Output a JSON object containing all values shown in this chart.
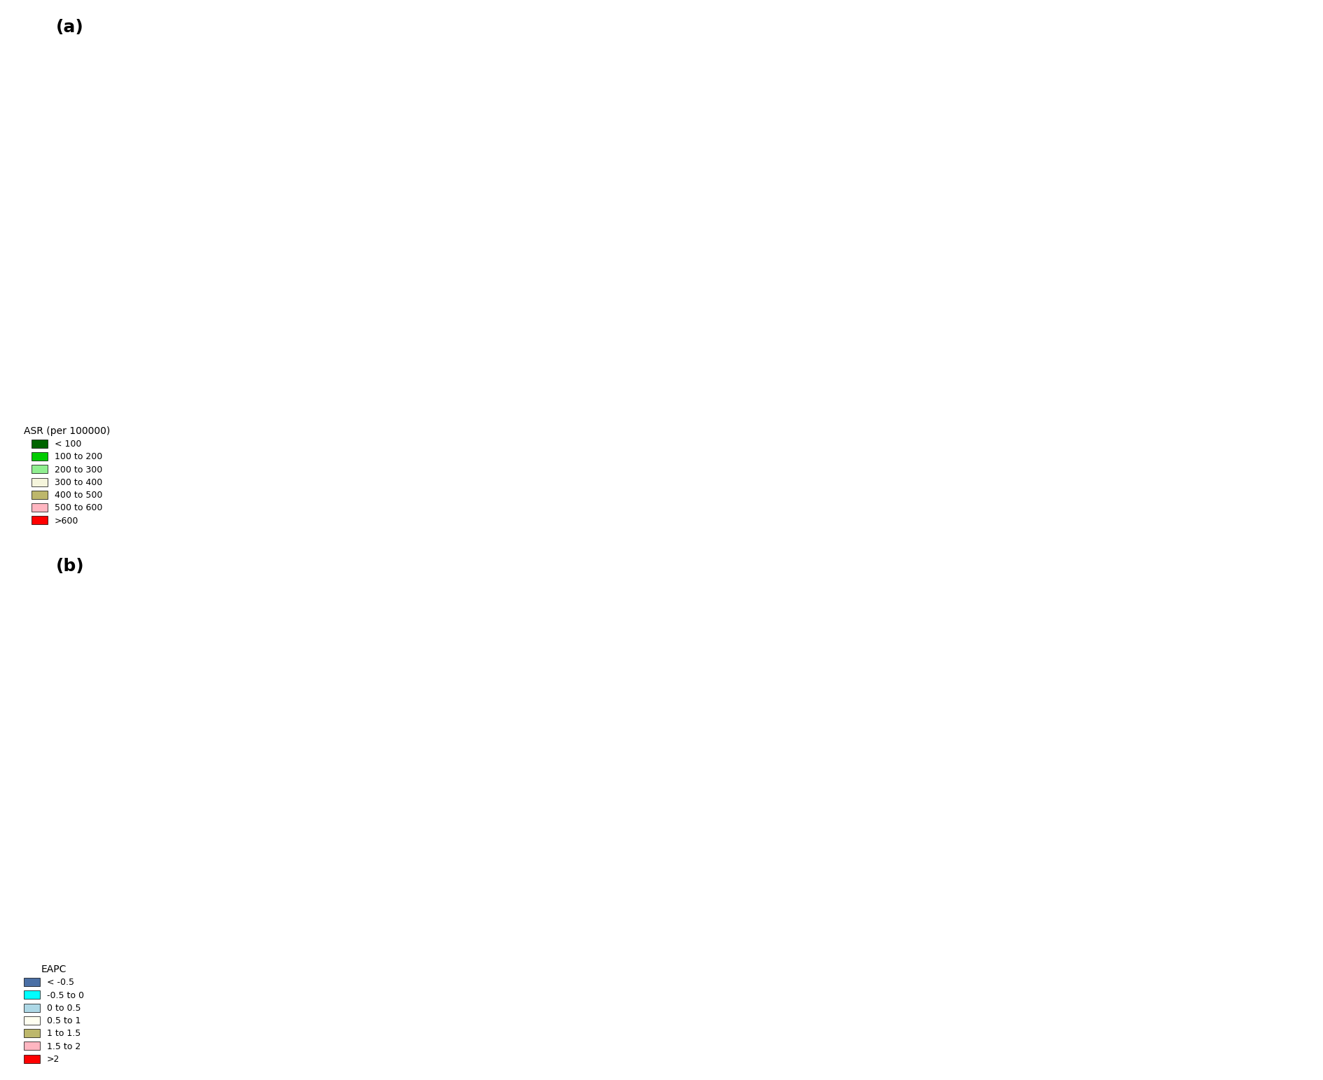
{
  "panel_a_label": "(a)",
  "panel_b_label": "(b)",
  "asr_legend_title": "ASR (per 100000)",
  "asr_bins": [
    "< 100",
    "100 to 200",
    "200 to 300",
    "300 to 400",
    "400 to 500",
    "500 to 600",
    ">600"
  ],
  "asr_colors": [
    "#006400",
    "#00CC00",
    "#90EE90",
    "#F5F5DC",
    "#BDB76B",
    "#FFB6C1",
    "#FF0000"
  ],
  "eapc_legend_title": "EAPC",
  "eapc_bins": [
    "< -0.5",
    "-0.5 to 0",
    "0 to 0.5",
    "0.5 to 1",
    "1 to 1.5",
    "1.5 to 2",
    ">2"
  ],
  "eapc_colors": [
    "#4A6FA5",
    "#00FFFF",
    "#ADD8E6",
    "#FFFFF0",
    "#BDB76B",
    "#FFB6C1",
    "#FF0000"
  ],
  "default_asr_color": "#F5F5DC",
  "default_eapc_color": "#BDB76B",
  "ocean_color": "#FFFFFF",
  "border_color": "#808080",
  "border_width": 0.3,
  "asr_country_colors": {
    "United States of America": "#BDB76B",
    "Canada": "#BDB76B",
    "Mexico": "#90EE90",
    "Guatemala": "#90EE90",
    "Belize": "#90EE90",
    "Honduras": "#90EE90",
    "El Salvador": "#90EE90",
    "Nicaragua": "#90EE90",
    "Costa Rica": "#90EE90",
    "Panama": "#90EE90",
    "Cuba": "#90EE90",
    "Jamaica": "#90EE90",
    "Haiti": "#90EE90",
    "Dominican Republic": "#90EE90",
    "Trinidad and Tobago": "#90EE90",
    "Colombia": "#F5F5DC",
    "Venezuela": "#90EE90",
    "Guyana": "#90EE90",
    "Suriname": "#90EE90",
    "Ecuador": "#90EE90",
    "Peru": "#F5F5DC",
    "Bolivia": "#F5F5DC",
    "Brazil": "#F5F5DC",
    "Paraguay": "#F5F5DC",
    "Chile": "#F5F5DC",
    "Argentina": "#F5F5DC",
    "Uruguay": "#F5F5DC",
    "Iceland": "#FFB6C1",
    "Norway": "#00CC00",
    "Sweden": "#00CC00",
    "Finland": "#00CC00",
    "Denmark": "#00CC00",
    "Estonia": "#00CC00",
    "Latvia": "#00CC00",
    "Lithuania": "#00CC00",
    "Belarus": "#00CC00",
    "Poland": "#00CC00",
    "Germany": "#00CC00",
    "Netherlands": "#00CC00",
    "Belgium": "#00CC00",
    "Luxembourg": "#00CC00",
    "United Kingdom": "#00CC00",
    "Ireland": "#00CC00",
    "France": "#00CC00",
    "Switzerland": "#00CC00",
    "Austria": "#00CC00",
    "Czech Republic": "#00CC00",
    "Slovakia": "#00CC00",
    "Hungary": "#00CC00",
    "Romania": "#00CC00",
    "Moldova": "#00CC00",
    "Ukraine": "#00CC00",
    "Portugal": "#FF0000",
    "Spain": "#FF0000",
    "Italy": "#00CC00",
    "Slovenia": "#00CC00",
    "Croatia": "#00CC00",
    "Bosnia and Herzegovina": "#00CC00",
    "Serbia": "#00CC00",
    "Montenegro": "#00CC00",
    "Albania": "#00CC00",
    "North Macedonia": "#00CC00",
    "Bulgaria": "#00CC00",
    "Greece": "#00CC00",
    "Cyprus": "#00CC00",
    "Turkey": "#90EE90",
    "Russia": "#00CC00",
    "Kazakhstan": "#00CC00",
    "Uzbekistan": "#00CC00",
    "Turkmenistan": "#00CC00",
    "Kyrgyzstan": "#00CC00",
    "Tajikistan": "#00CC00",
    "Azerbaijan": "#00CC00",
    "Armenia": "#00CC00",
    "Georgia": "#00CC00",
    "Syria": "#90EE90",
    "Lebanon": "#90EE90",
    "Israel": "#90EE90",
    "Jordan": "#90EE90",
    "Iraq": "#90EE90",
    "Iran": "#90EE90",
    "Kuwait": "#90EE90",
    "Saudi Arabia": "#90EE90",
    "Yemen": "#90EE90",
    "Oman": "#90EE90",
    "United Arab Emirates": "#90EE90",
    "Qatar": "#90EE90",
    "Bahrain": "#90EE90",
    "Afghanistan": "#90EE90",
    "Pakistan": "#90EE90",
    "India": "#00CC00",
    "Nepal": "#00CC00",
    "Bhutan": "#00CC00",
    "Bangladesh": "#00CC00",
    "Sri Lanka": "#00CC00",
    "Myanmar": "#00CC00",
    "Thailand": "#00CC00",
    "Cambodia": "#00CC00",
    "Laos": "#00CC00",
    "Vietnam": "#00CC00",
    "Malaysia": "#00CC00",
    "Brunei": "#00CC00",
    "Indonesia": "#00CC00",
    "Philippines": "#00CC00",
    "China": "#00CC00",
    "Mongolia": "#90EE90",
    "North Korea": "#00CC00",
    "South Korea": "#90EE90",
    "Japan": "#90EE90",
    "Papua New Guinea": "#00CC00",
    "Australia": "#FF0000",
    "New Zealand": "#FFB6C1",
    "Morocco": "#90EE90",
    "Algeria": "#90EE90",
    "Tunisia": "#90EE90",
    "Libya": "#90EE90",
    "Egypt": "#90EE90",
    "Sudan": "#90EE90",
    "South Sudan": "#90EE90",
    "Ethiopia": "#006400",
    "Eritrea": "#006400",
    "Djibouti": "#006400",
    "Somalia": "#006400",
    "Kenya": "#006400",
    "Uganda": "#006400",
    "Tanzania": "#006400",
    "Rwanda": "#006400",
    "Burundi": "#006400",
    "Democratic Republic of the Congo": "#006400",
    "Republic of the Congo": "#006400",
    "Central African Republic": "#006400",
    "Cameroon": "#006400",
    "Nigeria": "#006400",
    "Niger": "#90EE90",
    "Mali": "#90EE90",
    "Mauritania": "#90EE90",
    "Senegal": "#90EE90",
    "Gambia": "#90EE90",
    "Guinea-Bissau": "#90EE90",
    "Guinea": "#90EE90",
    "Sierra Leone": "#90EE90",
    "Liberia": "#90EE90",
    "Ivory Coast": "#90EE90",
    "Ghana": "#90EE90",
    "Togo": "#90EE90",
    "Benin": "#90EE90",
    "Burkina Faso": "#90EE90",
    "Chad": "#006400",
    "Gabon": "#006400",
    "Equatorial Guinea": "#006400",
    "Angola": "#006400",
    "Zambia": "#006400",
    "Zimbabwe": "#006400",
    "Mozambique": "#006400",
    "Malawi": "#006400",
    "Madagascar": "#90EE90",
    "Namibia": "#90EE90",
    "Botswana": "#90EE90",
    "South Africa": "#90EE90",
    "Lesotho": "#90EE90",
    "Swaziland": "#90EE90"
  },
  "eapc_country_colors": {
    "United States of America": "#ADD8E6",
    "Canada": "#ADD8E6",
    "Mexico": "#BDB76B",
    "Guatemala": "#BDB76B",
    "Belize": "#BDB76B",
    "Honduras": "#BDB76B",
    "El Salvador": "#BDB76B",
    "Nicaragua": "#BDB76B",
    "Costa Rica": "#BDB76B",
    "Panama": "#BDB76B",
    "Cuba": "#BDB76B",
    "Jamaica": "#BDB76B",
    "Haiti": "#BDB76B",
    "Dominican Republic": "#BDB76B",
    "Trinidad and Tobago": "#BDB76B",
    "Colombia": "#FFFFF0",
    "Venezuela": "#BDB76B",
    "Guyana": "#BDB76B",
    "Suriname": "#BDB76B",
    "Ecuador": "#BDB76B",
    "Peru": "#BDB76B",
    "Bolivia": "#BDB76B",
    "Brazil": "#BDB76B",
    "Paraguay": "#BDB76B",
    "Chile": "#ADD8E6",
    "Argentina": "#ADD8E6",
    "Uruguay": "#ADD8E6",
    "Iceland": "#ADD8E6",
    "Norway": "#ADD8E6",
    "Sweden": "#ADD8E6",
    "Finland": "#ADD8E6",
    "Denmark": "#ADD8E6",
    "Estonia": "#ADD8E6",
    "Latvia": "#ADD8E6",
    "Lithuania": "#ADD8E6",
    "Belarus": "#ADD8E6",
    "Poland": "#ADD8E6",
    "Germany": "#ADD8E6",
    "Netherlands": "#ADD8E6",
    "Belgium": "#ADD8E6",
    "Luxembourg": "#ADD8E6",
    "United Kingdom": "#ADD8E6",
    "Ireland": "#ADD8E6",
    "France": "#ADD8E6",
    "Switzerland": "#ADD8E6",
    "Austria": "#ADD8E6",
    "Czech Republic": "#ADD8E6",
    "Slovakia": "#ADD8E6",
    "Hungary": "#ADD8E6",
    "Romania": "#ADD8E6",
    "Moldova": "#ADD8E6",
    "Ukraine": "#ADD8E6",
    "Portugal": "#ADD8E6",
    "Spain": "#ADD8E6",
    "Italy": "#ADD8E6",
    "Slovenia": "#ADD8E6",
    "Croatia": "#ADD8E6",
    "Bosnia and Herzegovina": "#ADD8E6",
    "Serbia": "#ADD8E6",
    "Montenegro": "#ADD8E6",
    "Albania": "#ADD8E6",
    "North Macedonia": "#ADD8E6",
    "Bulgaria": "#ADD8E6",
    "Greece": "#ADD8E6",
    "Cyprus": "#ADD8E6",
    "Turkey": "#FFFFF0",
    "Russia": "#ADD8E6",
    "Kazakhstan": "#FFFFF0",
    "Uzbekistan": "#FFFFF0",
    "Turkmenistan": "#FFFFF0",
    "Kyrgyzstan": "#FFFFF0",
    "Tajikistan": "#FFFFF0",
    "Azerbaijan": "#FFFFF0",
    "Armenia": "#FFFFF0",
    "Georgia": "#FFFFF0",
    "Syria": "#BDB76B",
    "Lebanon": "#BDB76B",
    "Israel": "#ADD8E6",
    "Jordan": "#BDB76B",
    "Iraq": "#BDB76B",
    "Iran": "#FFFFF0",
    "Kuwait": "#BDB76B",
    "Saudi Arabia": "#BDB76B",
    "Yemen": "#BDB76B",
    "Oman": "#BDB76B",
    "United Arab Emirates": "#BDB76B",
    "Qatar": "#BDB76B",
    "Bahrain": "#BDB76B",
    "Afghanistan": "#BDB76B",
    "Pakistan": "#BDB76B",
    "India": "#FFB6C1",
    "Nepal": "#BDB76B",
    "Bhutan": "#BDB76B",
    "Bangladesh": "#FFFFF0",
    "Sri Lanka": "#BDB76B",
    "Myanmar": "#BDB76B",
    "Thailand": "#FFFFF0",
    "Cambodia": "#BDB76B",
    "Laos": "#BDB76B",
    "Vietnam": "#00FFFF",
    "Malaysia": "#BDB76B",
    "Indonesia": "#BDB76B",
    "Philippines": "#FFFFF0",
    "China": "#FF0000",
    "Mongolia": "#BDB76B",
    "North Korea": "#4A6FA5",
    "South Korea": "#ADD8E6",
    "Japan": "#ADD8E6",
    "Papua New Guinea": "#BDB76B",
    "Australia": "#BDB76B",
    "New Zealand": "#ADD8E6",
    "Morocco": "#BDB76B",
    "Algeria": "#BDB76B",
    "Tunisia": "#BDB76B",
    "Libya": "#BDB76B",
    "Egypt": "#BDB76B",
    "Sudan": "#BDB76B",
    "South Sudan": "#BDB76B",
    "Ethiopia": "#FFFFF0",
    "Eritrea": "#FFFFF0",
    "Djibouti": "#FFFFF0",
    "Somalia": "#BDB76B",
    "Kenya": "#FFFFF0",
    "Uganda": "#BDB76B",
    "Tanzania": "#BDB76B",
    "Rwanda": "#BDB76B",
    "Burundi": "#BDB76B",
    "Democratic Republic of the Congo": "#4A6FA5",
    "Republic of the Congo": "#FFFFF0",
    "Central African Republic": "#BDB76B",
    "Cameroon": "#BDB76B",
    "Nigeria": "#BDB76B",
    "Niger": "#BDB76B",
    "Mali": "#BDB76B",
    "Mauritania": "#BDB76B",
    "Senegal": "#BDB76B",
    "Gambia": "#BDB76B",
    "Guinea-Bissau": "#BDB76B",
    "Guinea": "#BDB76B",
    "Sierra Leone": "#BDB76B",
    "Liberia": "#BDB76B",
    "Ivory Coast": "#BDB76B",
    "Ghana": "#BDB76B",
    "Togo": "#BDB76B",
    "Benin": "#BDB76B",
    "Burkina Faso": "#BDB76B",
    "Chad": "#BDB76B",
    "Gabon": "#BDB76B",
    "Equatorial Guinea": "#FF0000",
    "Angola": "#BDB76B",
    "Zambia": "#BDB76B",
    "Zimbabwe": "#BDB76B",
    "Mozambique": "#BDB76B",
    "Malawi": "#BDB76B",
    "Madagascar": "#FFFFF0",
    "Namibia": "#BDB76B",
    "Botswana": "#BDB76B",
    "South Africa": "#BDB76B",
    "Lesotho": "#BDB76B",
    "Swaziland": "#BDB76B"
  }
}
